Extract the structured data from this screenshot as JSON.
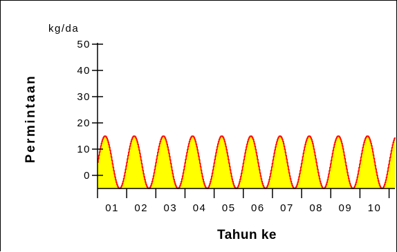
{
  "chart_data": {
    "type": "area",
    "unit_label": "kg/da",
    "ylabel": "Permintaan",
    "xlabel": "Tahun ke",
    "ylim": [
      -5,
      50
    ],
    "y_ticks": [
      0,
      10,
      20,
      30,
      40,
      50
    ],
    "x_ticks": [
      "01",
      "02",
      "03",
      "04",
      "05",
      "06",
      "07",
      "08",
      "09",
      "10"
    ],
    "xlim": [
      0,
      10.2
    ],
    "grid": false,
    "series": [
      {
        "period_years": 1,
        "peak_value": 15,
        "trough_value": -5,
        "fill_color": "#ffff00",
        "line_color": "#ff0000"
      }
    ]
  }
}
